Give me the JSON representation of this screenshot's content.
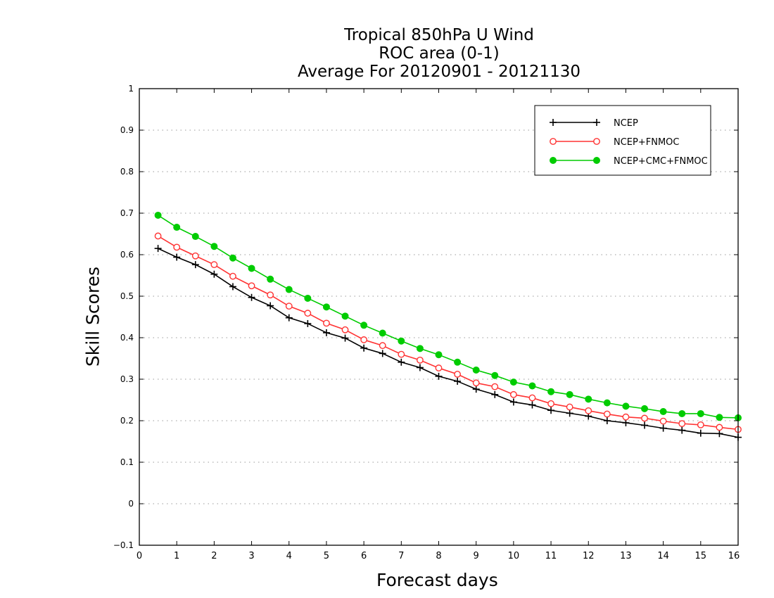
{
  "chart_data": {
    "type": "line",
    "title": [
      "Tropical 850hPa U Wind",
      "ROC area (0-1)",
      "Average For 20120901 - 20121130"
    ],
    "xlabel": "Forecast days",
    "ylabel": "Skill Scores",
    "xlim": [
      0,
      16
    ],
    "ylim": [
      -0.1,
      1
    ],
    "xticks": [
      "0",
      "1",
      "2",
      "3",
      "4",
      "5",
      "6",
      "7",
      "8",
      "9",
      "10",
      "11",
      "12",
      "13",
      "14",
      "15",
      "16"
    ],
    "yticks": [
      "-0.1",
      "0",
      "0.1",
      "0.2",
      "0.3",
      "0.4",
      "0.5",
      "0.6",
      "0.7",
      "0.8",
      "0.9",
      "1"
    ],
    "grid": "horizontal dotted",
    "legend_position": "top-right",
    "x": [
      0.5,
      1,
      1.5,
      2,
      2.5,
      3,
      3.5,
      4,
      4.5,
      5,
      5.5,
      6,
      6.5,
      7,
      7.5,
      8,
      8.5,
      9,
      9.5,
      10,
      10.5,
      11,
      11.5,
      12,
      12.5,
      13,
      13.5,
      14,
      14.5,
      15,
      15.5,
      16
    ],
    "series": [
      {
        "name": "NCEP",
        "color": "#000000",
        "marker": "plus",
        "values": [
          0.615,
          0.594,
          0.576,
          0.553,
          0.523,
          0.497,
          0.477,
          0.448,
          0.434,
          0.412,
          0.399,
          0.375,
          0.362,
          0.341,
          0.328,
          0.307,
          0.295,
          0.276,
          0.263,
          0.245,
          0.238,
          0.225,
          0.218,
          0.211,
          0.2,
          0.195,
          0.189,
          0.182,
          0.177,
          0.17,
          0.169,
          0.16
        ]
      },
      {
        "name": "NCEP+FNMOC",
        "color": "#ff3333",
        "marker": "open-circle",
        "values": [
          0.645,
          0.618,
          0.597,
          0.576,
          0.548,
          0.525,
          0.503,
          0.476,
          0.459,
          0.435,
          0.419,
          0.395,
          0.381,
          0.36,
          0.346,
          0.327,
          0.312,
          0.291,
          0.282,
          0.263,
          0.255,
          0.241,
          0.233,
          0.224,
          0.216,
          0.209,
          0.206,
          0.199,
          0.193,
          0.19,
          0.184,
          0.179
        ]
      },
      {
        "name": "NCEP+CMC+FNMOC",
        "color": "#00cc00",
        "marker": "filled-circle",
        "values": [
          0.695,
          0.666,
          0.644,
          0.62,
          0.592,
          0.567,
          0.541,
          0.516,
          0.495,
          0.474,
          0.452,
          0.43,
          0.411,
          0.392,
          0.374,
          0.359,
          0.341,
          0.322,
          0.309,
          0.293,
          0.284,
          0.27,
          0.263,
          0.252,
          0.243,
          0.235,
          0.229,
          0.222,
          0.217,
          0.217,
          0.208,
          0.207
        ]
      }
    ]
  }
}
